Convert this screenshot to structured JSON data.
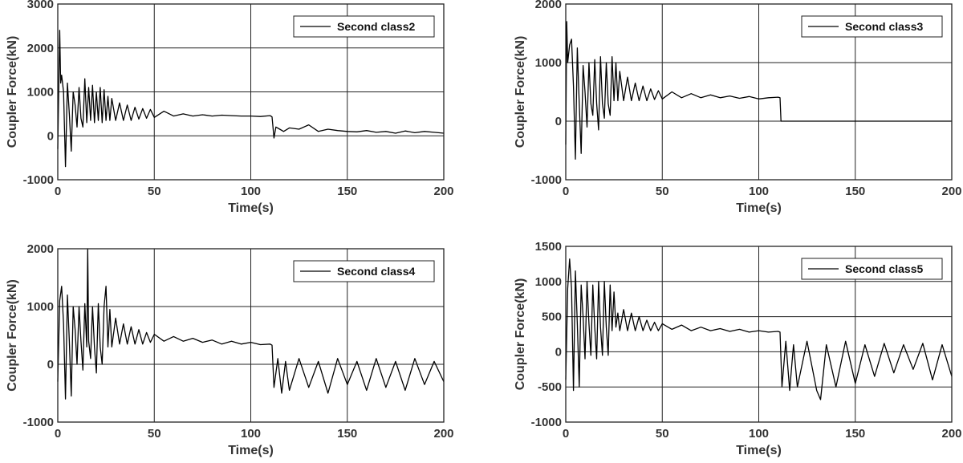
{
  "chart_data": [
    {
      "type": "line",
      "title": "",
      "xlabel": "Time(s)",
      "ylabel": "Coupler Force(kN)",
      "xlim": [
        0,
        200
      ],
      "ylim": [
        -1000,
        3000
      ],
      "xticks": [
        0,
        50,
        100,
        150,
        200
      ],
      "yticks": [
        -1000,
        0,
        1000,
        2000,
        3000
      ],
      "grid": true,
      "legend": "top-right",
      "series": [
        {
          "name": "Second class2",
          "color": "#000000",
          "x": [
            0,
            1,
            1.5,
            2,
            3,
            4,
            5,
            6,
            7,
            8,
            9,
            10,
            11,
            12,
            13,
            14,
            15,
            16,
            17,
            18,
            19,
            20,
            21,
            22,
            23,
            24,
            25,
            26,
            27,
            28,
            30,
            32,
            34,
            36,
            38,
            40,
            42,
            44,
            46,
            48,
            50,
            55,
            60,
            65,
            70,
            75,
            80,
            85,
            90,
            95,
            100,
            105,
            110,
            111,
            112,
            113,
            115,
            117,
            120,
            125,
            130,
            135,
            140,
            145,
            150,
            155,
            160,
            165,
            170,
            175,
            180,
            185,
            190,
            195,
            200
          ],
          "y": [
            -300,
            2400,
            1200,
            1380,
            1000,
            -700,
            1200,
            500,
            -350,
            1000,
            700,
            200,
            1100,
            400,
            200,
            1300,
            300,
            1100,
            350,
            1150,
            300,
            1000,
            350,
            1100,
            300,
            1050,
            350,
            900,
            350,
            850,
            350,
            750,
            350,
            700,
            350,
            650,
            380,
            620,
            400,
            600,
            420,
            560,
            450,
            500,
            450,
            480,
            450,
            470,
            460,
            450,
            450,
            440,
            460,
            430,
            -50,
            200,
            150,
            100,
            180,
            150,
            250,
            100,
            150,
            120,
            100,
            90,
            120,
            80,
            100,
            60,
            110,
            70,
            100,
            80,
            60
          ]
        }
      ]
    },
    {
      "type": "line",
      "title": "",
      "xlabel": "Time(s)",
      "ylabel": "Coupler Force(kN)",
      "xlim": [
        0,
        200
      ],
      "ylim": [
        -1000,
        2000
      ],
      "xticks": [
        0,
        50,
        100,
        150,
        200
      ],
      "yticks": [
        -1000,
        0,
        1000,
        2000
      ],
      "grid": true,
      "legend": "top-right",
      "series": [
        {
          "name": "Second class3",
          "color": "#000000",
          "x": [
            0,
            0.5,
            1,
            2,
            3,
            4,
            5,
            6,
            7,
            8,
            9,
            10,
            11,
            12,
            13,
            14,
            15,
            16,
            17,
            18,
            19,
            20,
            21,
            22,
            23,
            24,
            25,
            26,
            27,
            28,
            30,
            32,
            34,
            36,
            38,
            40,
            42,
            44,
            46,
            48,
            50,
            55,
            60,
            65,
            70,
            75,
            80,
            85,
            90,
            95,
            100,
            105,
            110,
            111,
            111.5,
            200
          ],
          "y": [
            -400,
            1700,
            1000,
            1300,
            1400,
            600,
            -650,
            1250,
            300,
            -550,
            950,
            500,
            -100,
            1000,
            300,
            100,
            1050,
            300,
            -150,
            1100,
            300,
            50,
            1000,
            300,
            100,
            1100,
            350,
            1000,
            350,
            850,
            350,
            750,
            350,
            650,
            350,
            600,
            350,
            550,
            370,
            520,
            380,
            500,
            400,
            470,
            400,
            450,
            400,
            430,
            390,
            420,
            380,
            400,
            410,
            400,
            0,
            0
          ]
        }
      ]
    },
    {
      "type": "line",
      "title": "",
      "xlabel": "Time(s)",
      "ylabel": "Coupler Force(kN)",
      "xlim": [
        0,
        200
      ],
      "ylim": [
        -1000,
        2000
      ],
      "xticks": [
        0,
        50,
        100,
        150,
        200
      ],
      "yticks": [
        -1000,
        0,
        1000,
        2000
      ],
      "grid": true,
      "legend": "top-right",
      "series": [
        {
          "name": "Second class4",
          "color": "#000000",
          "x": [
            0,
            1,
            2,
            3,
            4,
            5,
            6,
            7,
            8,
            9,
            10,
            11,
            12,
            13,
            14,
            15,
            15.5,
            16,
            17,
            18,
            19,
            20,
            21,
            22,
            23,
            24,
            25,
            26,
            27,
            28,
            30,
            32,
            34,
            36,
            38,
            40,
            42,
            44,
            46,
            48,
            50,
            55,
            60,
            65,
            70,
            75,
            80,
            85,
            90,
            95,
            100,
            105,
            110,
            111,
            112,
            114,
            116,
            118,
            120,
            125,
            130,
            135,
            140,
            145,
            150,
            155,
            160,
            165,
            170,
            175,
            180,
            185,
            190,
            195,
            200
          ],
          "y": [
            -300,
            1100,
            1350,
            700,
            -600,
            1200,
            400,
            -550,
            1000,
            600,
            0,
            1000,
            400,
            -100,
            1050,
            300,
            2000,
            400,
            100,
            1000,
            300,
            -150,
            1050,
            300,
            0,
            1000,
            1350,
            300,
            950,
            300,
            800,
            350,
            700,
            350,
            650,
            350,
            600,
            350,
            550,
            380,
            520,
            400,
            480,
            400,
            450,
            380,
            420,
            350,
            400,
            350,
            380,
            340,
            350,
            330,
            -400,
            100,
            -500,
            50,
            -450,
            100,
            -400,
            50,
            -500,
            100,
            -350,
            50,
            -450,
            100,
            -400,
            50,
            -450,
            100,
            -350,
            50,
            -300
          ]
        }
      ]
    },
    {
      "type": "line",
      "title": "",
      "xlabel": "Time(s)",
      "ylabel": "Coupler Force(kN)",
      "xlim": [
        0,
        200
      ],
      "ylim": [
        -1000,
        1500
      ],
      "xticks": [
        0,
        50,
        100,
        150,
        200
      ],
      "yticks": [
        -1000,
        -500,
        0,
        500,
        1000,
        1500
      ],
      "grid": true,
      "legend": "top-right",
      "series": [
        {
          "name": "Second class5",
          "color": "#000000",
          "x": [
            0,
            1,
            2,
            3,
            4,
            5,
            6,
            7,
            8,
            9,
            10,
            11,
            12,
            13,
            14,
            15,
            16,
            17,
            18,
            19,
            20,
            21,
            22,
            23,
            24,
            25,
            26,
            27,
            28,
            30,
            32,
            34,
            36,
            38,
            40,
            42,
            44,
            46,
            48,
            50,
            55,
            60,
            65,
            70,
            75,
            80,
            85,
            90,
            95,
            100,
            105,
            110,
            111,
            112,
            114,
            116,
            118,
            120,
            125,
            130,
            132,
            135,
            140,
            145,
            150,
            155,
            160,
            165,
            170,
            175,
            180,
            185,
            190,
            195,
            200
          ],
          "y": [
            -400,
            900,
            1320,
            900,
            -550,
            1150,
            400,
            -500,
            950,
            500,
            -100,
            1000,
            400,
            -50,
            950,
            350,
            -100,
            1000,
            350,
            -50,
            1000,
            350,
            -50,
            950,
            300,
            850,
            350,
            550,
            300,
            600,
            300,
            550,
            300,
            500,
            300,
            450,
            300,
            420,
            300,
            400,
            320,
            380,
            300,
            350,
            300,
            330,
            290,
            320,
            280,
            300,
            280,
            290,
            280,
            -500,
            150,
            -550,
            100,
            -500,
            150,
            -550,
            -680,
            100,
            -500,
            150,
            -450,
            100,
            -350,
            120,
            -300,
            100,
            -250,
            120,
            -400,
            100,
            -350
          ]
        }
      ]
    }
  ]
}
